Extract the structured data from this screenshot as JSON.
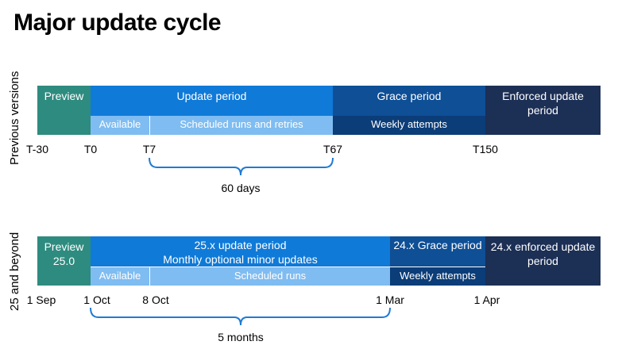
{
  "title": "Major update cycle",
  "row1": {
    "label": "Previous versions",
    "segments": {
      "preview": "Preview",
      "update": "Update period",
      "grace": "Grace period",
      "enforced": "Enforced update period"
    },
    "subsegments": {
      "available": "Available",
      "scheduled": "Scheduled runs and retries",
      "weekly": "Weekly attempts"
    },
    "ticks": [
      "T-30",
      "T0",
      "T7",
      "T67",
      "T150"
    ],
    "span_label": "60 days"
  },
  "row2": {
    "label": "25 and beyond",
    "segments": {
      "preview": "Preview 25.0",
      "update": "25.x update period\nMonthly optional minor updates",
      "grace": "24.x Grace period",
      "enforced": "24.x enforced update period"
    },
    "subsegments": {
      "available": "Available",
      "scheduled": "Scheduled runs",
      "weekly": "Weekly attempts"
    },
    "ticks": [
      "1 Sep",
      "1 Oct",
      "8 Oct",
      "1 Mar",
      "1 Apr"
    ],
    "span_label": "5 months"
  }
}
